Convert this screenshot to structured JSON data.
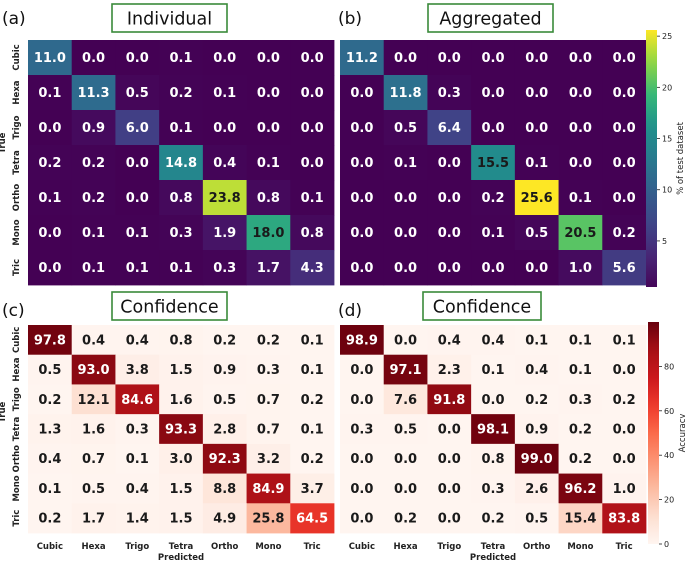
{
  "chart_data": [
    {
      "type": "heatmap",
      "panel_label": "(a)",
      "title": "Individual",
      "xlabel": "",
      "ylabel": "True",
      "rows": [
        "Cubic",
        "Hexa",
        "Trigo",
        "Tetra",
        "Ortho",
        "Mono",
        "Tric"
      ],
      "cols": [],
      "values": [
        [
          "11.0",
          "0.0",
          "0.0",
          "0.1",
          "0.0",
          "0.0",
          "0.0"
        ],
        [
          "0.1",
          "11.3",
          "0.5",
          "0.2",
          "0.1",
          "0.0",
          "0.0"
        ],
        [
          "0.0",
          "0.9",
          "6.0",
          "0.1",
          "0.0",
          "0.0",
          "0.0"
        ],
        [
          "0.2",
          "0.2",
          "0.0",
          "14.8",
          "0.4",
          "0.1",
          "0.0"
        ],
        [
          "0.1",
          "0.2",
          "0.0",
          "0.8",
          "23.8",
          "0.8",
          "0.1"
        ],
        [
          "0.0",
          "0.1",
          "0.1",
          "0.3",
          "1.9",
          "18.0",
          "0.8"
        ],
        [
          "0.0",
          "0.1",
          "0.1",
          "0.1",
          "0.3",
          "1.7",
          "4.3"
        ]
      ],
      "colormap": "viridis",
      "vmin": 0,
      "vmax": 25.6
    },
    {
      "type": "heatmap",
      "panel_label": "(b)",
      "title": "Aggregated",
      "xlabel": "",
      "ylabel": "",
      "rows": [],
      "cols": [],
      "values": [
        [
          "11.2",
          "0.0",
          "0.0",
          "0.0",
          "0.0",
          "0.0",
          "0.0"
        ],
        [
          "0.0",
          "11.8",
          "0.3",
          "0.0",
          "0.0",
          "0.0",
          "0.0"
        ],
        [
          "0.0",
          "0.5",
          "6.4",
          "0.0",
          "0.0",
          "0.0",
          "0.0"
        ],
        [
          "0.0",
          "0.1",
          "0.0",
          "15.5",
          "0.1",
          "0.0",
          "0.0"
        ],
        [
          "0.0",
          "0.0",
          "0.0",
          "0.2",
          "25.6",
          "0.1",
          "0.0"
        ],
        [
          "0.0",
          "0.0",
          "0.0",
          "0.1",
          "0.5",
          "20.5",
          "0.2"
        ],
        [
          "0.0",
          "0.0",
          "0.0",
          "0.0",
          "0.0",
          "1.0",
          "5.6"
        ]
      ],
      "colormap": "viridis",
      "vmin": 0,
      "vmax": 25.6,
      "colorbar": {
        "label": "% of test dataset",
        "ticks": [
          "5",
          "10",
          "15",
          "20",
          "25"
        ],
        "range": [
          0.5,
          25.6
        ]
      }
    },
    {
      "type": "heatmap",
      "panel_label": "(c)",
      "title": "Confidence",
      "xlabel": "Predicted",
      "ylabel": "True",
      "rows": [
        "Cubic",
        "Hexa",
        "Trigo",
        "Tetra",
        "Ortho",
        "Mono",
        "Tric"
      ],
      "cols": [
        "Cubic",
        "Hexa",
        "Trigo",
        "Tetra",
        "Ortho",
        "Mono",
        "Tric"
      ],
      "values": [
        [
          "97.8",
          "0.4",
          "0.4",
          "0.8",
          "0.2",
          "0.2",
          "0.1"
        ],
        [
          "0.5",
          "93.0",
          "3.8",
          "1.5",
          "0.9",
          "0.3",
          "0.1"
        ],
        [
          "0.2",
          "12.1",
          "84.6",
          "1.6",
          "0.5",
          "0.7",
          "0.2"
        ],
        [
          "1.3",
          "1.6",
          "0.3",
          "93.3",
          "2.8",
          "0.7",
          "0.1"
        ],
        [
          "0.4",
          "0.7",
          "0.1",
          "3.0",
          "92.3",
          "3.2",
          "0.2"
        ],
        [
          "0.1",
          "0.5",
          "0.4",
          "1.5",
          "8.8",
          "84.9",
          "3.7"
        ],
        [
          "0.2",
          "1.7",
          "1.4",
          "1.5",
          "4.9",
          "25.8",
          "64.5"
        ]
      ],
      "colormap": "reds",
      "vmin": 0,
      "vmax": 100
    },
    {
      "type": "heatmap",
      "panel_label": "(d)",
      "title": "Confidence",
      "xlabel": "Predicted",
      "ylabel": "",
      "rows": [],
      "cols": [
        "Cubic",
        "Hexa",
        "Trigo",
        "Tetra",
        "Ortho",
        "Mono",
        "Tric"
      ],
      "values": [
        [
          "98.9",
          "0.0",
          "0.4",
          "0.4",
          "0.1",
          "0.1",
          "0.1"
        ],
        [
          "0.0",
          "97.1",
          "2.3",
          "0.1",
          "0.4",
          "0.1",
          "0.0"
        ],
        [
          "0.0",
          "7.6",
          "91.8",
          "0.0",
          "0.2",
          "0.3",
          "0.2"
        ],
        [
          "0.3",
          "0.5",
          "0.0",
          "98.1",
          "0.9",
          "0.2",
          "0.0"
        ],
        [
          "0.0",
          "0.0",
          "0.0",
          "0.8",
          "99.0",
          "0.2",
          "0.0"
        ],
        [
          "0.0",
          "0.0",
          "0.0",
          "0.3",
          "2.6",
          "96.2",
          "1.0"
        ],
        [
          "0.0",
          "0.2",
          "0.0",
          "0.2",
          "0.5",
          "15.4",
          "83.8"
        ]
      ],
      "colormap": "reds",
      "vmin": 0,
      "vmax": 100,
      "colorbar": {
        "label": "Accuracy",
        "ticks": [
          "0",
          "20",
          "40",
          "60",
          "80"
        ],
        "range": [
          0,
          100
        ]
      }
    }
  ]
}
